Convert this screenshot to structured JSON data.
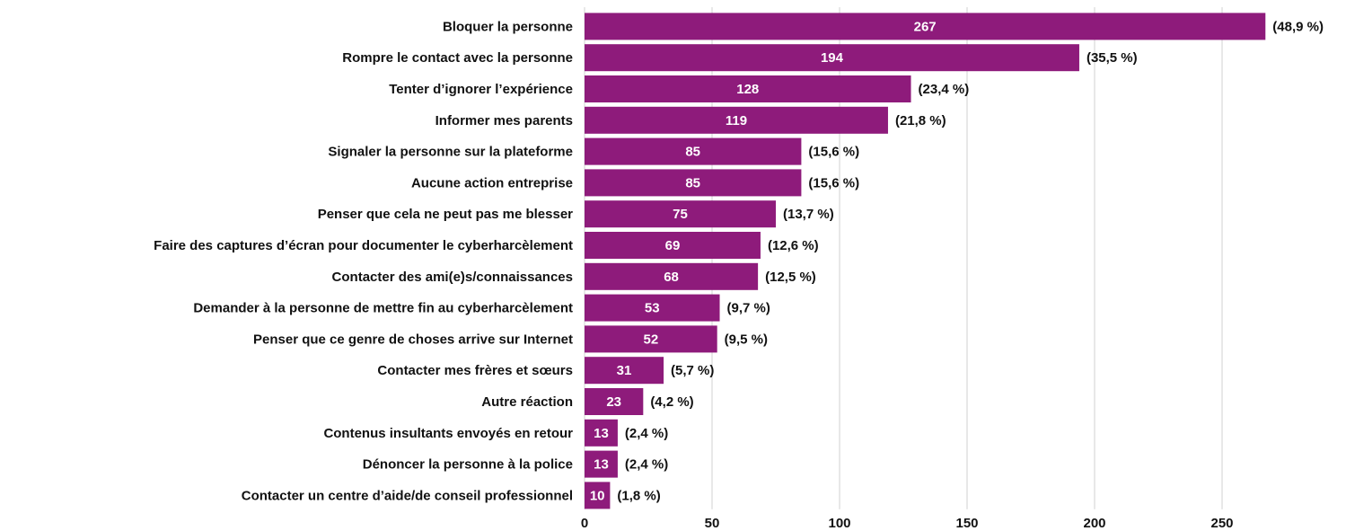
{
  "chart_data": {
    "type": "bar",
    "orientation": "horizontal",
    "categories": [
      "Bloquer la personne",
      "Rompre le contact avec la personne",
      "Tenter d’ignorer l’expérience",
      "Informer mes parents",
      "Signaler la personne sur la plateforme",
      "Aucune action entreprise",
      "Penser que cela ne peut pas me blesser",
      "Faire des captures d’écran pour documenter le cyberharcèlement",
      "Contacter des ami(e)s/connaissances",
      "Demander à la personne de mettre fin au cyberharcèlement",
      "Penser que ce genre de choses arrive sur Internet",
      "Contacter mes frères et sœurs",
      "Autre réaction",
      "Contenus insultants envoyés en retour",
      "Dénoncer la personne à la police",
      "Contacter un centre d’aide/de conseil professionnel"
    ],
    "values": [
      267,
      194,
      128,
      119,
      85,
      85,
      75,
      69,
      68,
      53,
      52,
      31,
      23,
      13,
      13,
      10
    ],
    "annotations": [
      "(48,9 %)",
      "(35,5 %)",
      "(23,4 %)",
      "(21,8 %)",
      "(15,6 %)",
      "(15,6 %)",
      "(13,7 %)",
      "(12,6 %)",
      "(12,5 %)",
      "(9,7 %)",
      "(9,5 %)",
      "(5,7 %)",
      "(4,2 %)",
      "(2,4 %)",
      "(2,4 %)",
      "(1,8 %)"
    ],
    "color": "#8e1b7b",
    "xlim": [
      0,
      290
    ],
    "xticks": [
      0,
      50,
      100,
      150,
      200,
      250
    ],
    "grid": true
  }
}
